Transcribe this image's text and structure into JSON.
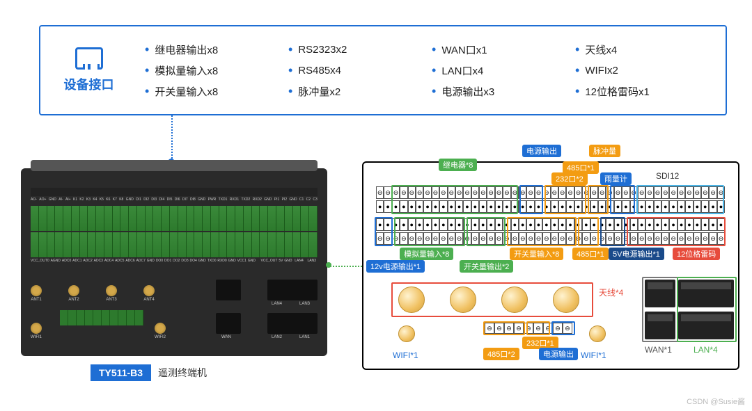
{
  "top_panel": {
    "title": "设备接口",
    "specs": [
      "继电器输出x8",
      "RS2323x2",
      "WAN口x1",
      "天线x4",
      "模拟量输入x8",
      "RS485x4",
      "LAN口x4",
      "WIFIx2",
      "开关量输入x8",
      "脉冲量x2",
      "电源输出x3",
      "12位格雷码x1"
    ]
  },
  "product": {
    "badge": "TY511-B3",
    "desc": "遥测终端机"
  },
  "device_labels_top": [
    "AO-",
    "AO+",
    "GND",
    "AI-",
    "AI+",
    "K1",
    "K2",
    "K3",
    "K4",
    "K5",
    "K6",
    "K7",
    "K8",
    "GND",
    "DI1",
    "DI2",
    "DI3",
    "DI4",
    "DI5",
    "DI6",
    "DI7",
    "DI8",
    "GND",
    "PWR",
    "TXD1",
    "RXD1",
    "TXD2",
    "RXD2",
    "GND",
    "PI1",
    "PI2",
    "GND",
    "C1",
    "C2",
    "C3"
  ],
  "device_labels_bot": [
    "VCC_OUT0",
    "AGND",
    "ADC0",
    "ADC1",
    "ADC2",
    "ADC3",
    "ADC4",
    "ADC5",
    "ADC6",
    "ADC7",
    "GND",
    "DO0",
    "DO1",
    "DO2",
    "DO3",
    "DO4",
    "GND",
    "TXD0",
    "RXD0",
    "GND",
    "VCC1",
    "GND",
    "",
    "",
    "",
    "VCC_OUT",
    "5V",
    "GND",
    "",
    "LAN4",
    "",
    "",
    "LAN3",
    ""
  ],
  "antennas": [
    "ANT1",
    "ANT2",
    "ANT3",
    "ANT4"
  ],
  "wifi": [
    "WIFI1",
    "WIFI2"
  ],
  "rj_labels": {
    "wan": "WAN",
    "lan1": "LAN1",
    "lan2": "LAN2",
    "lan3": "LAN3",
    "lan4": "LAN4"
  },
  "ext_labels": {
    "power_out": "电源输出",
    "pulse": "脉冲量",
    "relay8": "继电器*8",
    "port485_1": "485口*1",
    "port232_2": "232口*2",
    "rain": "雨量计",
    "sdi12": "SDI12",
    "analog8": "模拟量输入*8",
    "di8": "开关量输入*8",
    "port485_1b": "485口*1",
    "v5out": "5V电源输出*1",
    "gray12": "12位格雷码",
    "v12out": "12v电源输出*1",
    "do2": "开关量输出*2",
    "ant4": "天线*4",
    "wifi1": "WIFI*1",
    "port485_2": "485口*2",
    "port232_1": "232口*1",
    "wifi1b": "WIFI*1",
    "power_out2": "电源输出",
    "wan1": "WAN*1",
    "lan4": "LAN*4"
  },
  "colors": {
    "blue": "#1e6ed4",
    "green": "#4caf50",
    "orange": "#f39c12",
    "red": "#e74c3c",
    "navy": "#1a4a8a",
    "cyan": "#4ab4e6"
  },
  "watermark": "CSDN @Susie酱"
}
